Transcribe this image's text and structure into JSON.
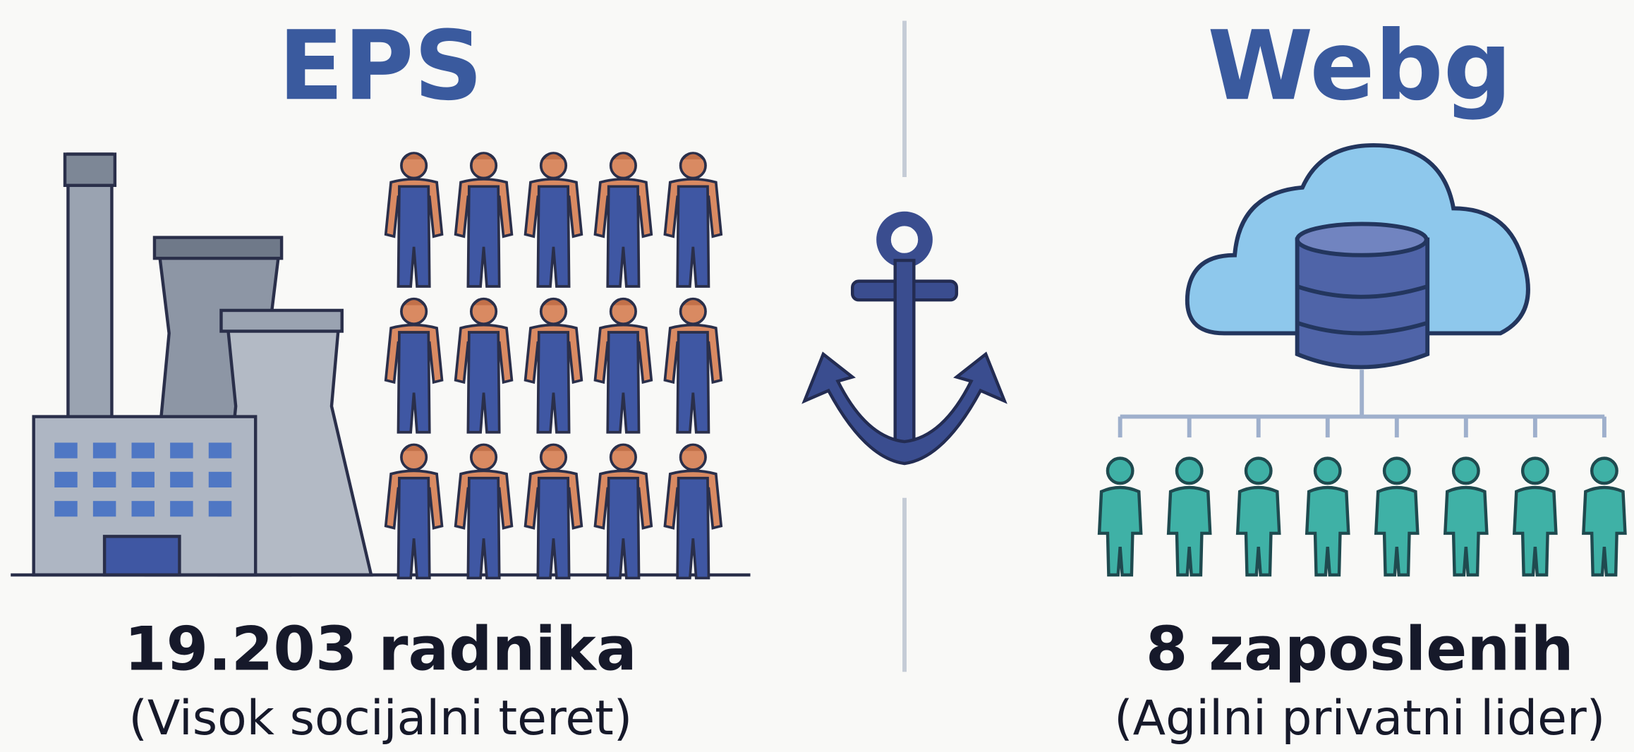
{
  "left": {
    "title": "EPS",
    "headline": "19.203 radnika",
    "subtitle": "(Visok socijalni teret)"
  },
  "right": {
    "title": "Webg",
    "headline": "8 zaposlenih",
    "subtitle": "(Agilni privatni lider)"
  }
}
